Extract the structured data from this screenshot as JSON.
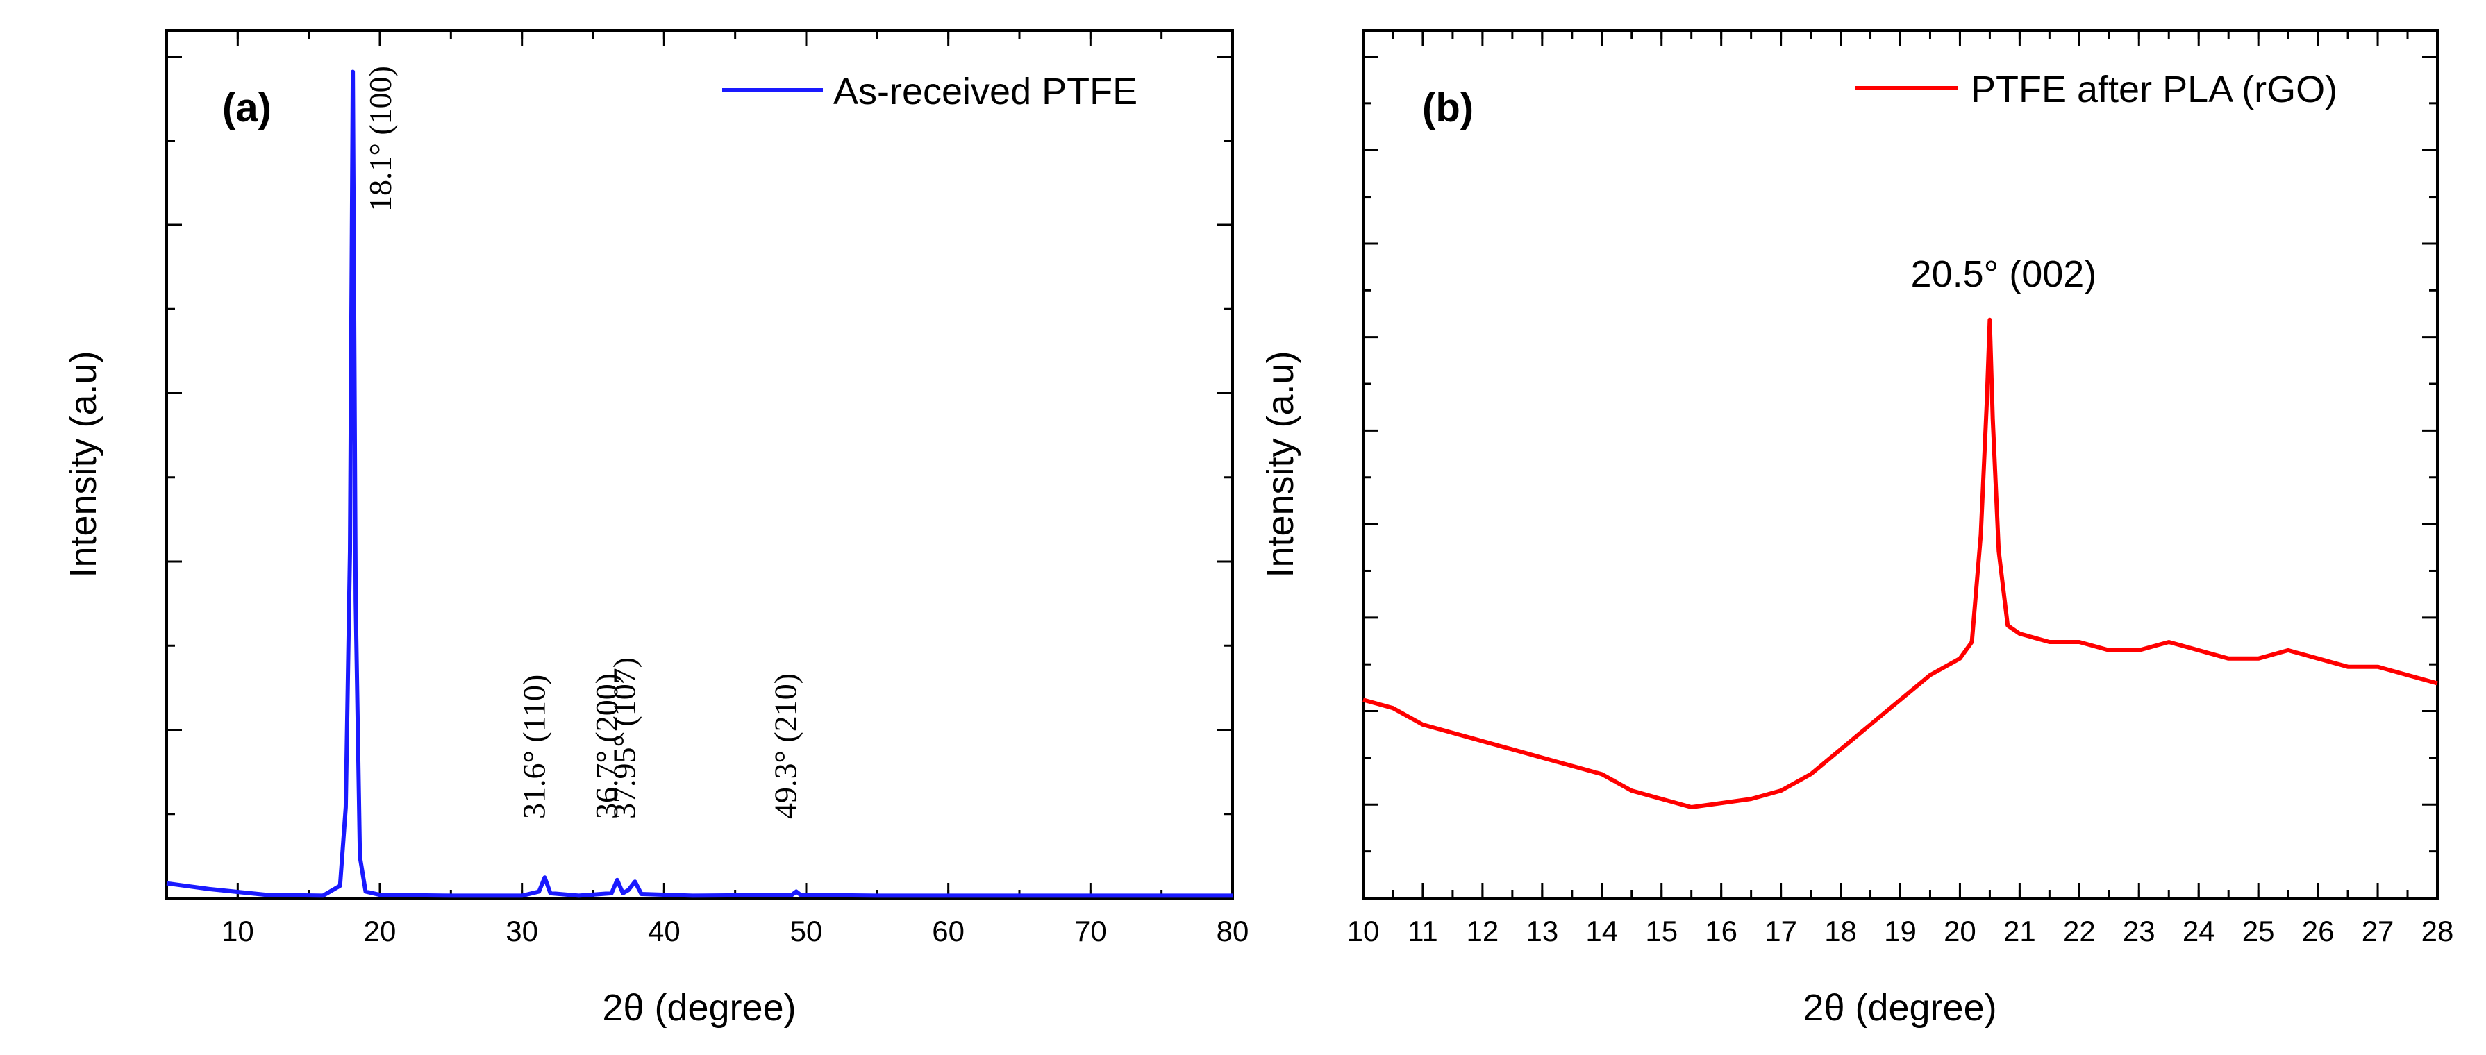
{
  "chart_data": [
    {
      "panel": "(a)",
      "type": "line",
      "xlabel": "2θ (degree)",
      "ylabel": "Intensity (a.u)",
      "xlim": [
        5,
        80
      ],
      "ylim": [
        0,
        1.05
      ],
      "xticks": [
        10,
        20,
        30,
        40,
        50,
        60,
        70,
        80
      ],
      "yticks_labeled": false,
      "color": "#1a1aff",
      "legend_position": "top-right",
      "series": [
        {
          "name": "As-received PTFE",
          "x": [
            5,
            8,
            12,
            16,
            17.2,
            17.6,
            17.9,
            18.1,
            18.3,
            18.6,
            19,
            20,
            25,
            30,
            31.2,
            31.6,
            32.0,
            34,
            36.3,
            36.7,
            37.1,
            37.5,
            37.95,
            38.4,
            42,
            49.0,
            49.3,
            49.6,
            55,
            60,
            65,
            70,
            75,
            80
          ],
          "y": [
            0.018,
            0.011,
            0.004,
            0.003,
            0.015,
            0.11,
            0.42,
            1.0,
            0.36,
            0.05,
            0.008,
            0.004,
            0.003,
            0.003,
            0.008,
            0.025,
            0.006,
            0.003,
            0.006,
            0.022,
            0.006,
            0.01,
            0.02,
            0.005,
            0.003,
            0.004,
            0.008,
            0.004,
            0.003,
            0.003,
            0.003,
            0.003,
            0.003,
            0.003
          ]
        }
      ],
      "annotations": [
        {
          "text": "18.1° (100)",
          "x": 18.1
        },
        {
          "text": "31.6° (110)",
          "x": 31.6
        },
        {
          "text": "36.7° (200)",
          "x": 36.7
        },
        {
          "text": "37.95° (107)",
          "x": 37.95
        },
        {
          "text": "49.3° (210)",
          "x": 49.3
        }
      ]
    },
    {
      "panel": "(b)",
      "type": "line",
      "xlabel": "2θ (degree)",
      "ylabel": "Intensity (a.u)",
      "xlim": [
        10,
        28
      ],
      "ylim": [
        0,
        1.05
      ],
      "xticks": [
        10,
        11,
        12,
        13,
        14,
        15,
        16,
        17,
        18,
        19,
        20,
        21,
        22,
        23,
        24,
        25,
        26,
        27,
        28
      ],
      "yticks_labeled": false,
      "color": "#ff0000",
      "legend_position": "top-right",
      "series": [
        {
          "name": "PTFE after PLA (rGO)",
          "x": [
            10,
            10.5,
            11,
            11.5,
            12,
            12.5,
            13,
            13.5,
            14,
            14.5,
            15,
            15.5,
            16,
            16.5,
            17,
            17.5,
            18,
            18.5,
            19,
            19.5,
            20,
            20.2,
            20.35,
            20.45,
            20.5,
            20.55,
            20.65,
            20.8,
            21,
            21.5,
            22,
            22.5,
            23,
            23.5,
            24,
            24.5,
            25,
            25.5,
            26,
            26.5,
            27,
            27.5,
            28
          ],
          "y": [
            0.24,
            0.23,
            0.21,
            0.2,
            0.19,
            0.18,
            0.17,
            0.16,
            0.15,
            0.13,
            0.12,
            0.11,
            0.115,
            0.12,
            0.13,
            0.15,
            0.18,
            0.21,
            0.24,
            0.27,
            0.29,
            0.31,
            0.44,
            0.6,
            0.7,
            0.58,
            0.42,
            0.33,
            0.32,
            0.31,
            0.31,
            0.3,
            0.3,
            0.31,
            0.3,
            0.29,
            0.29,
            0.3,
            0.29,
            0.28,
            0.28,
            0.27,
            0.26
          ]
        }
      ],
      "annotations": [
        {
          "text": "20.5° (002)",
          "x": 20.5
        }
      ]
    }
  ]
}
